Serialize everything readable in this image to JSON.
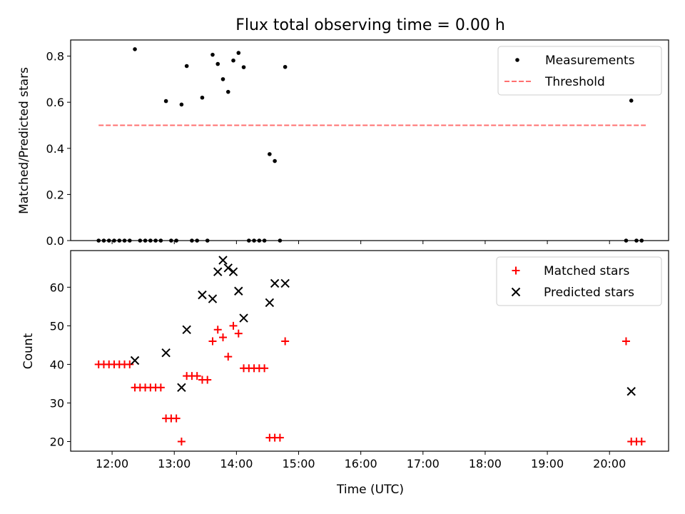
{
  "chart_data": [
    {
      "type": "scatter",
      "title": "Flux total observing time = 0.00 h",
      "xlabel": "",
      "ylabel": "Matched/Predicted stars",
      "xlim": [
        "11:20",
        "20:57"
      ],
      "ylim": [
        0,
        0.87
      ],
      "yticks": [
        0.0,
        0.2,
        0.4,
        0.6,
        0.8
      ],
      "ytick_labels": [
        "0.0",
        "0.2",
        "0.4",
        "0.6",
        "0.8"
      ],
      "legend_position": "top-right",
      "legend": [
        "Measurements",
        "Threshold"
      ],
      "threshold": {
        "name": "Threshold",
        "value": 0.5,
        "x_range": [
          "11:47",
          "20:35"
        ],
        "style": "dashed",
        "color": "#ff7070"
      },
      "series": [
        {
          "name": "Measurements",
          "marker": "dot",
          "color": "#000000",
          "points": [
            [
              "11:47",
              0
            ],
            [
              "11:52",
              0
            ],
            [
              "11:57",
              0
            ],
            [
              "12:02",
              0
            ],
            [
              "12:07",
              0
            ],
            [
              "12:12",
              0
            ],
            [
              "12:17",
              0
            ],
            [
              "12:22",
              0.83
            ],
            [
              "12:27",
              0
            ],
            [
              "12:32",
              0
            ],
            [
              "12:37",
              0
            ],
            [
              "12:42",
              0
            ],
            [
              "12:47",
              0
            ],
            [
              "12:52",
              0.605
            ],
            [
              "12:57",
              0
            ],
            [
              "13:02",
              0
            ],
            [
              "13:07",
              0.59
            ],
            [
              "13:12",
              0.757
            ],
            [
              "13:17",
              0
            ],
            [
              "13:22",
              0
            ],
            [
              "13:27",
              0.62
            ],
            [
              "13:32",
              0
            ],
            [
              "13:37",
              0.806
            ],
            [
              "13:42",
              0.766
            ],
            [
              "13:47",
              0.7
            ],
            [
              "13:52",
              0.645
            ],
            [
              "13:57",
              0.781
            ],
            [
              "14:02",
              0.814
            ],
            [
              "14:07",
              0.752
            ],
            [
              "14:12",
              0
            ],
            [
              "14:17",
              0
            ],
            [
              "14:22",
              0
            ],
            [
              "14:27",
              0
            ],
            [
              "14:32",
              0.375
            ],
            [
              "14:37",
              0.345
            ],
            [
              "14:42",
              0
            ],
            [
              "14:47",
              0.753
            ],
            [
              "20:16",
              0
            ],
            [
              "20:21",
              0.607
            ],
            [
              "20:26",
              0
            ],
            [
              "20:31",
              0
            ]
          ]
        }
      ]
    },
    {
      "type": "scatter",
      "title": "",
      "xlabel": "Time (UTC)",
      "ylabel": "Count",
      "xlim": [
        "11:20",
        "20:57"
      ],
      "ylim": [
        17.5,
        69.5
      ],
      "yticks": [
        20,
        30,
        40,
        50,
        60
      ],
      "ytick_labels": [
        "20",
        "30",
        "40",
        "50",
        "60"
      ],
      "xticks": [
        "12:00",
        "13:00",
        "14:00",
        "15:00",
        "16:00",
        "17:00",
        "18:00",
        "19:00",
        "20:00"
      ],
      "legend_position": "top-right",
      "legend": [
        "Matched stars",
        "Predicted stars"
      ],
      "series": [
        {
          "name": "Matched stars",
          "marker": "plus",
          "color": "#ff0000",
          "points": [
            [
              "11:47",
              40
            ],
            [
              "11:52",
              40
            ],
            [
              "11:57",
              40
            ],
            [
              "12:02",
              40
            ],
            [
              "12:07",
              40
            ],
            [
              "12:12",
              40
            ],
            [
              "12:17",
              40
            ],
            [
              "12:22",
              34
            ],
            [
              "12:27",
              34
            ],
            [
              "12:32",
              34
            ],
            [
              "12:37",
              34
            ],
            [
              "12:42",
              34
            ],
            [
              "12:47",
              34
            ],
            [
              "12:52",
              26
            ],
            [
              "12:57",
              26
            ],
            [
              "13:02",
              26
            ],
            [
              "13:07",
              20
            ],
            [
              "13:12",
              37
            ],
            [
              "13:17",
              37
            ],
            [
              "13:22",
              37
            ],
            [
              "13:27",
              36
            ],
            [
              "13:32",
              36
            ],
            [
              "13:37",
              46
            ],
            [
              "13:42",
              49
            ],
            [
              "13:47",
              47
            ],
            [
              "13:52",
              42
            ],
            [
              "13:57",
              50
            ],
            [
              "14:02",
              48
            ],
            [
              "14:07",
              39
            ],
            [
              "14:12",
              39
            ],
            [
              "14:17",
              39
            ],
            [
              "14:22",
              39
            ],
            [
              "14:27",
              39
            ],
            [
              "14:32",
              21
            ],
            [
              "14:37",
              21
            ],
            [
              "14:42",
              21
            ],
            [
              "14:47",
              46
            ],
            [
              "20:16",
              46
            ],
            [
              "20:21",
              20
            ],
            [
              "20:26",
              20
            ],
            [
              "20:31",
              20
            ]
          ]
        },
        {
          "name": "Predicted stars",
          "marker": "x",
          "color": "#000000",
          "points": [
            [
              "12:22",
              41
            ],
            [
              "12:52",
              43
            ],
            [
              "13:07",
              34
            ],
            [
              "13:12",
              49
            ],
            [
              "13:27",
              58
            ],
            [
              "13:37",
              57
            ],
            [
              "13:42",
              64
            ],
            [
              "13:47",
              67
            ],
            [
              "13:52",
              65
            ],
            [
              "13:57",
              64
            ],
            [
              "14:02",
              59
            ],
            [
              "14:07",
              52
            ],
            [
              "14:32",
              56
            ],
            [
              "14:37",
              61
            ],
            [
              "14:47",
              61
            ],
            [
              "20:21",
              33
            ]
          ]
        }
      ]
    }
  ]
}
